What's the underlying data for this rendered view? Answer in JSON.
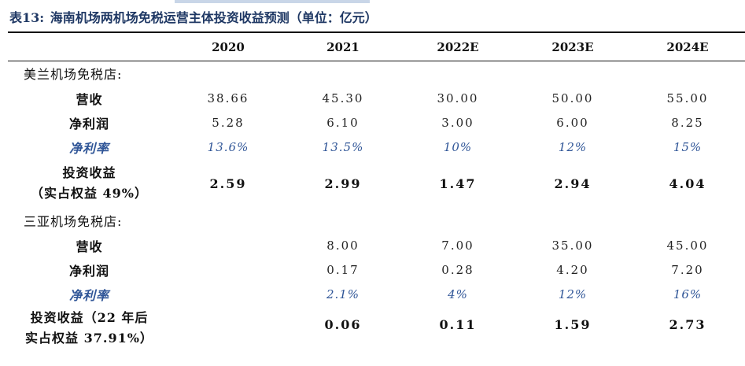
{
  "caption": {
    "number": "表13:",
    "title": "海南机场两机场免税运营主体投资收益预测（单位：亿元）"
  },
  "columns": [
    "2020",
    "2021",
    "2022E",
    "2023E",
    "2024E"
  ],
  "sections": [
    {
      "title": "美兰机场免税店:",
      "revenue": {
        "label": "营收",
        "values": [
          "38.66",
          "45.30",
          "30.00",
          "50.00",
          "55.00"
        ]
      },
      "net_profit": {
        "label": "净利润",
        "values": [
          "5.28",
          "6.10",
          "3.00",
          "6.00",
          "8.25"
        ]
      },
      "net_margin": {
        "label": "净利率",
        "values": [
          "13.6%",
          "13.5%",
          "10%",
          "12%",
          "15%"
        ]
      },
      "investment_income": {
        "label_line1": "投资收益",
        "label_line2": "（实占权益 49%）",
        "values": [
          "2.59",
          "2.99",
          "1.47",
          "2.94",
          "4.04"
        ]
      }
    },
    {
      "title": "三亚机场免税店:",
      "revenue": {
        "label": "营收",
        "values": [
          "",
          "8.00",
          "7.00",
          "35.00",
          "45.00"
        ]
      },
      "net_profit": {
        "label": "净利润",
        "values": [
          "",
          "0.17",
          "0.28",
          "4.20",
          "7.20"
        ]
      },
      "net_margin": {
        "label": "净利率",
        "values": [
          "",
          "2.1%",
          "4%",
          "12%",
          "16%"
        ]
      },
      "investment_income": {
        "label_line1": "投资收益（22 年后",
        "label_line2": "实占权益 37.91%）",
        "values": [
          "",
          "0.06",
          "0.11",
          "1.59",
          "2.73"
        ]
      }
    }
  ]
}
